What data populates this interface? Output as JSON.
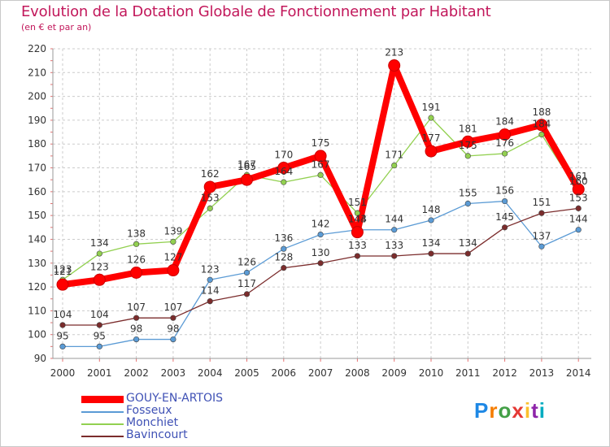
{
  "title": "Evolution de la Dotation Globale de Fonctionnement par Habitant",
  "subtitle": "(en € et par an)",
  "logo": {
    "text": "Proxiti",
    "letters": [
      "P",
      "r",
      "o",
      "x",
      "i",
      "t",
      "i"
    ],
    "colors": [
      "#1e88e5",
      "#f57c00",
      "#43a047",
      "#e53935",
      "#fbc02d",
      "#8e24aa",
      "#00acc1"
    ]
  },
  "chart_data": {
    "type": "line",
    "title": "Evolution de la Dotation Globale de Fonctionnement par Habitant",
    "subtitle": "(en € et par an)",
    "x": [
      2000,
      2001,
      2002,
      2003,
      2004,
      2005,
      2006,
      2007,
      2008,
      2009,
      2010,
      2011,
      2012,
      2013,
      2014
    ],
    "ylim": [
      90,
      220
    ],
    "yticks": [
      90,
      100,
      110,
      120,
      130,
      140,
      150,
      160,
      170,
      180,
      190,
      200,
      210,
      220
    ],
    "grid": true,
    "legend_position": "bottom-left",
    "series": [
      {
        "name": "Fosseux",
        "color": "#5b9bd5",
        "values": [
          95,
          95,
          98,
          98,
          123,
          126,
          136,
          142,
          144,
          144,
          148,
          155,
          156,
          137,
          144
        ]
      },
      {
        "name": "Monchiet",
        "color": "#92d050",
        "values": [
          123,
          134,
          138,
          139,
          153,
          167,
          164,
          167,
          151,
          171,
          191,
          175,
          176,
          184,
          160
        ]
      },
      {
        "name": "Bavincourt",
        "color": "#7b2c2c",
        "values": [
          104,
          104,
          107,
          107,
          114,
          117,
          128,
          130,
          133,
          133,
          134,
          134,
          145,
          151,
          153
        ]
      },
      {
        "name": "GOUY-EN-ARTOIS",
        "color": "#ff0000",
        "values": [
          121,
          123,
          126,
          127,
          162,
          165,
          170,
          175,
          143,
          213,
          177,
          181,
          184,
          188,
          161
        ]
      }
    ],
    "legend": [
      {
        "name": "GOUY-EN-ARTOIS",
        "color": "#ff0000"
      },
      {
        "name": "Fosseux",
        "color": "#5b9bd5"
      },
      {
        "name": "Monchiet",
        "color": "#92d050"
      },
      {
        "name": "Bavincourt",
        "color": "#7b2c2c"
      }
    ]
  }
}
